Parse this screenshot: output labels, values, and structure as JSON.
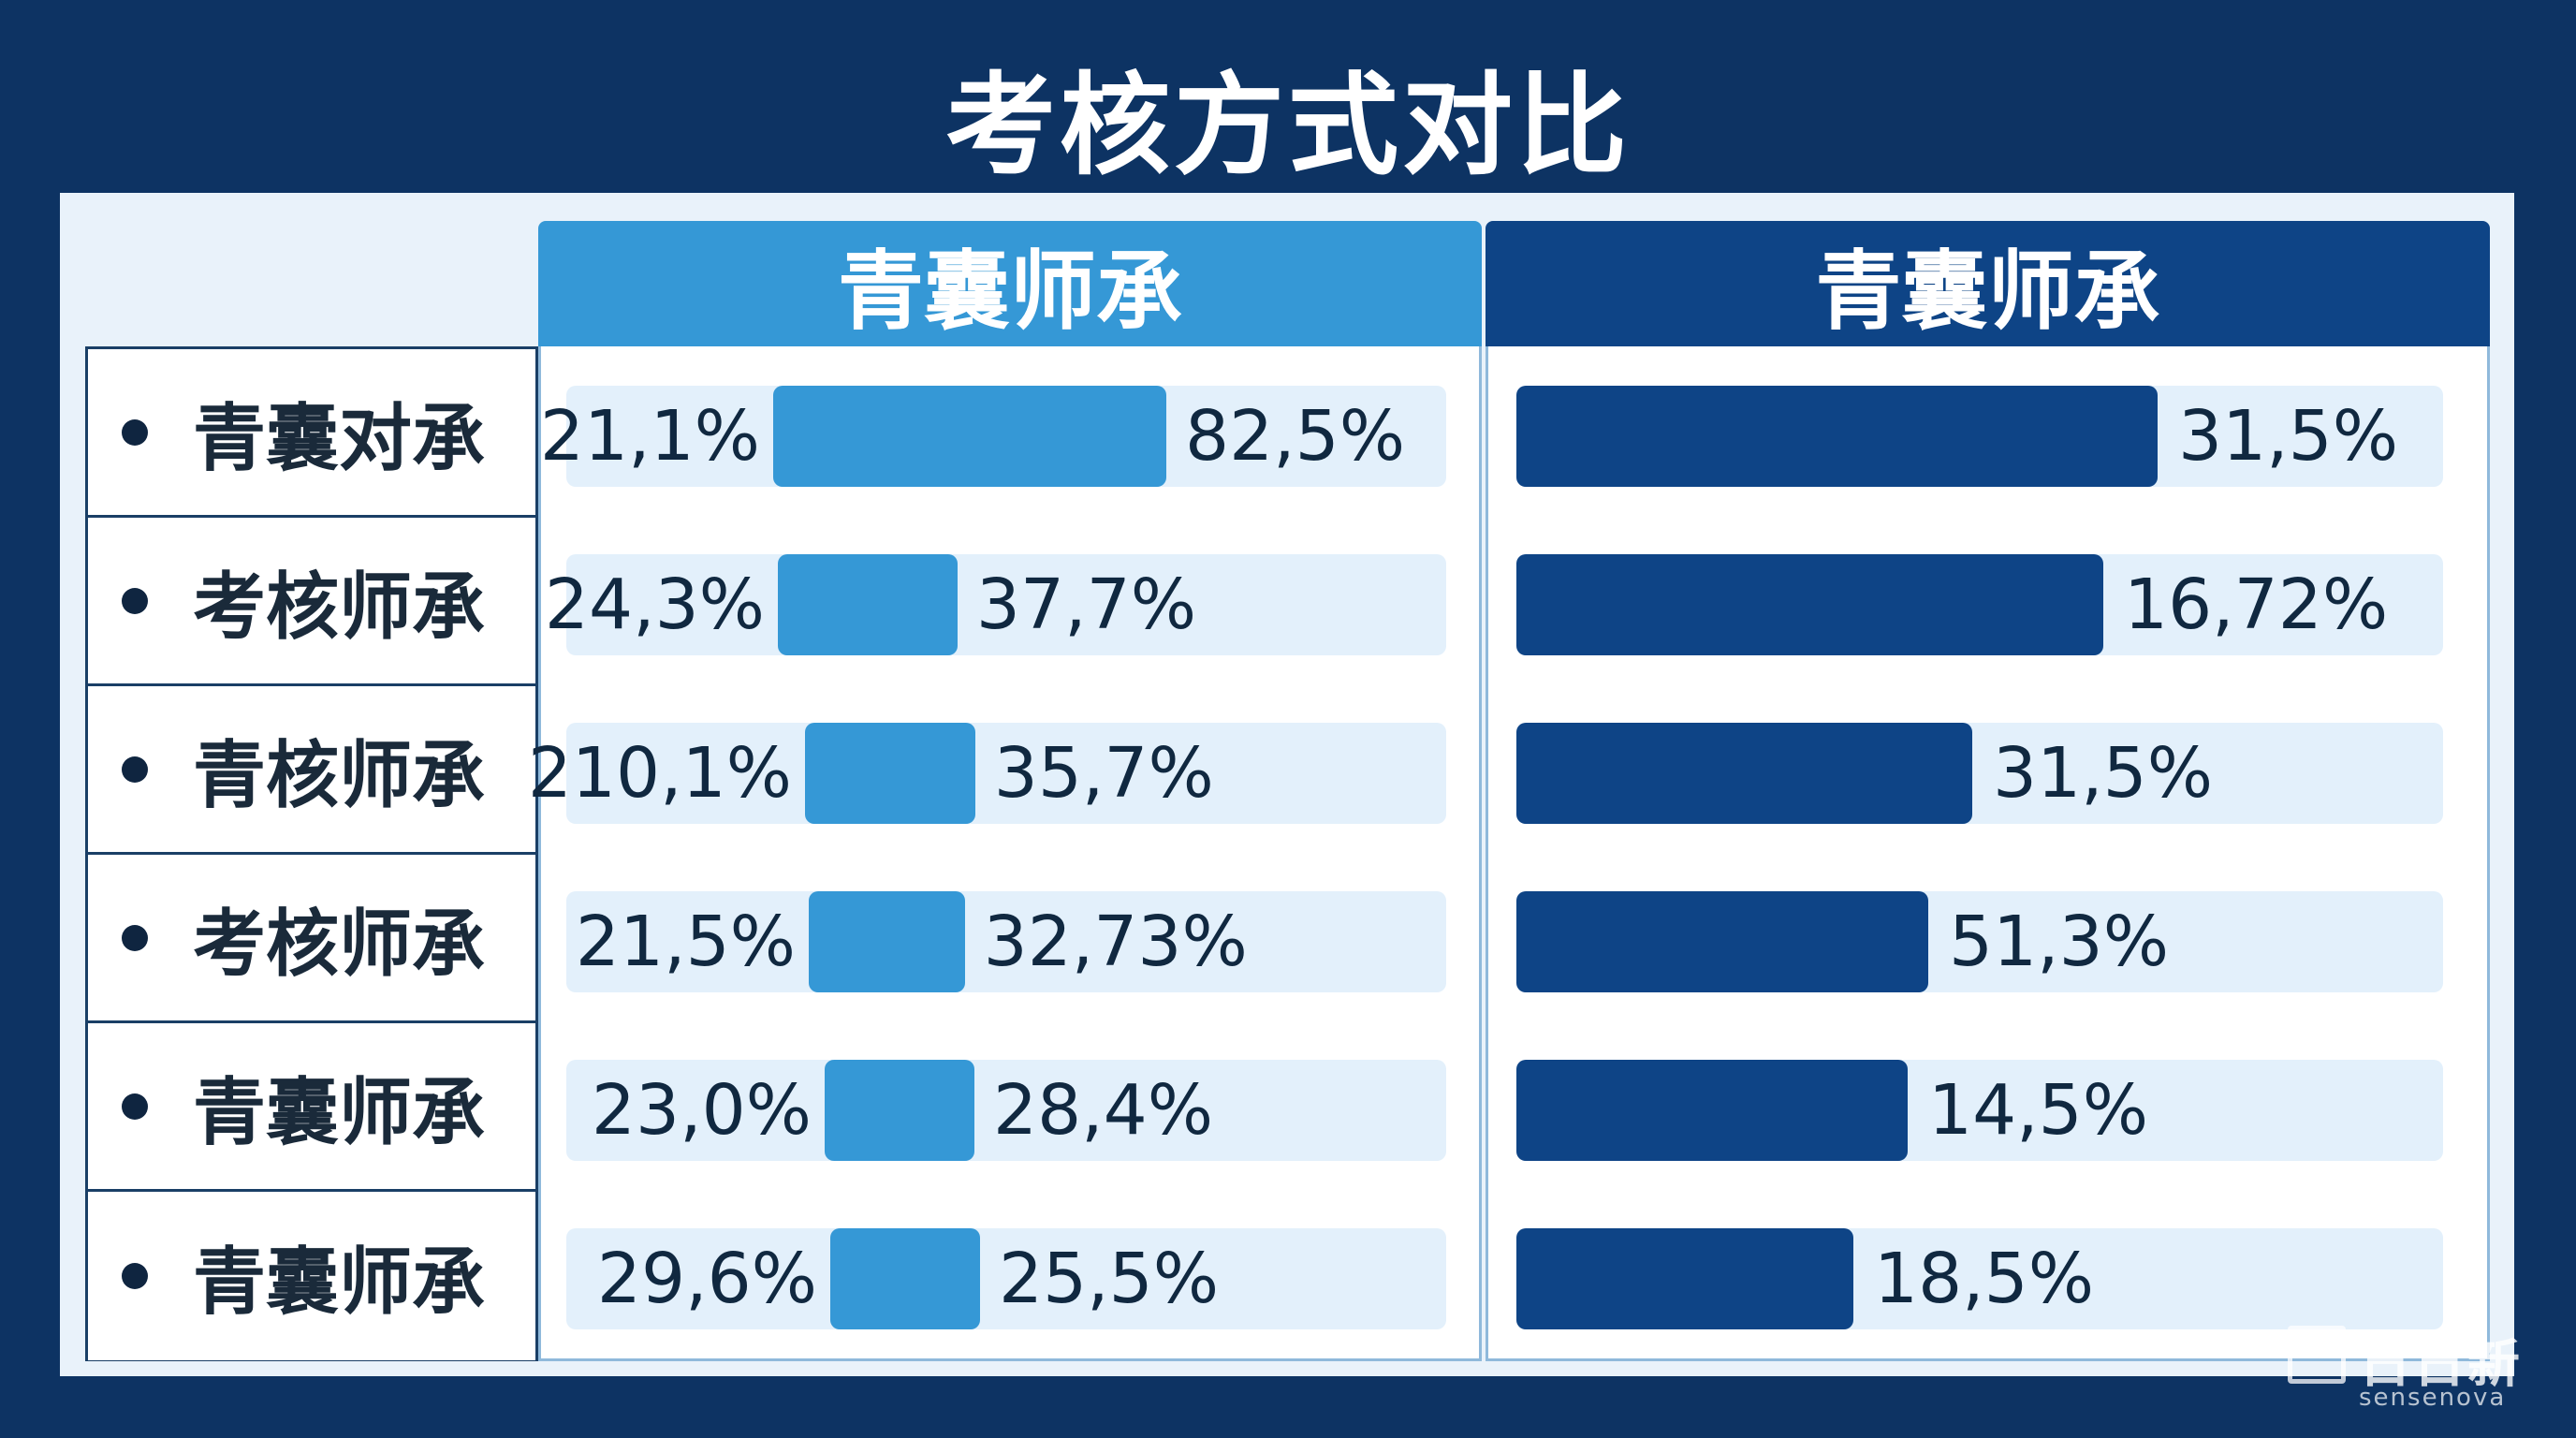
{
  "title": "考核方式对比",
  "watermark": {
    "text": "日日新",
    "sub": "sensenova"
  },
  "colors": {
    "left_bar": "#3598d6",
    "right_bar": "#0e4486",
    "track": "#e3f0fb",
    "background": "#0d3363"
  },
  "chart_data": {
    "type": "bar",
    "title": "考核方式对比",
    "categories": [
      "青囊对承",
      "考核师承",
      "青核师承",
      "考核师承",
      "青囊师承",
      "青囊师承"
    ],
    "series": [
      {
        "name": "青囊师承",
        "inner_labels": [
          "21,1%",
          "24,3%",
          "210,1%",
          "21,5%",
          "23,0%",
          "29,6%"
        ],
        "value_labels": [
          "82,5%",
          "37,7%",
          "35,7%",
          "32,73%",
          "28,4%",
          "25,5%"
        ],
        "values": [
          82.5,
          37.7,
          35.7,
          32.73,
          28.4,
          25.5
        ]
      },
      {
        "name": "青囊师承",
        "value_labels": [
          "31,5%",
          "16,72%",
          "31,5%",
          "51,3%",
          "14,5%",
          "18,5%"
        ],
        "values": [
          31.5,
          16.72,
          31.5,
          51.3,
          14.5,
          18.5
        ]
      }
    ],
    "grid": false,
    "legend": "none"
  }
}
